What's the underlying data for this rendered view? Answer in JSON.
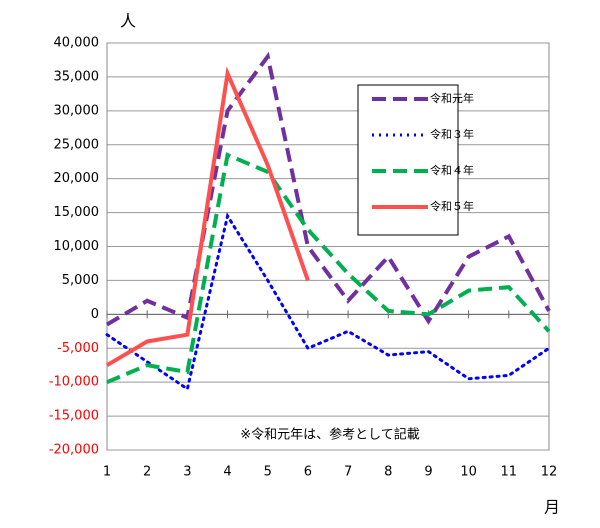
{
  "chart_data": {
    "type": "line",
    "y_unit": "人",
    "x_unit": "月",
    "annotation": "※令和元年は、参考として記載",
    "categories": [
      "1",
      "2",
      "3",
      "4",
      "5",
      "6",
      "7",
      "8",
      "9",
      "10",
      "11",
      "12"
    ],
    "series": [
      {
        "name": "令和元年",
        "color": "#7030a0",
        "dash": "dashed",
        "values": [
          -1500,
          2000,
          -500,
          30000,
          38000,
          10000,
          2000,
          8500,
          -1000,
          8500,
          11500,
          500
        ]
      },
      {
        "name": "令和３年",
        "color": "#0000ff",
        "dash": "dotted",
        "values": [
          -3000,
          -7000,
          -11000,
          14500,
          5000,
          -5000,
          -2500,
          -6000,
          -5500,
          -9500,
          -9000,
          -5000
        ]
      },
      {
        "name": "令和４年",
        "color": "#00b050",
        "dash": "dashed",
        "values": [
          -10000,
          -7500,
          -8500,
          23500,
          21000,
          12500,
          6000,
          500,
          0,
          3500,
          4000,
          -2500
        ]
      },
      {
        "name": "令和５年",
        "color": "#ff5050",
        "dash": "solid",
        "values": [
          -7500,
          -4000,
          -3000,
          35500,
          22000,
          5000,
          null,
          null,
          null,
          null,
          null,
          null
        ]
      }
    ],
    "ylim": [
      -20000,
      40000
    ],
    "yticks": [
      {
        "value": -20000,
        "label": "-20,000"
      },
      {
        "value": -15000,
        "label": "-15,000"
      },
      {
        "value": -10000,
        "label": "-10,000"
      },
      {
        "value": -5000,
        "label": "-5,000"
      },
      0,
      {
        "value": 5000,
        "label": "5,000"
      },
      {
        "value": 10000,
        "label": "10,000"
      },
      {
        "value": 15000,
        "label": "15,000"
      },
      {
        "value": 20000,
        "label": "20,000"
      },
      {
        "value": 25000,
        "label": "25,000"
      },
      {
        "value": 30000,
        "label": "30,000"
      },
      {
        "value": 35000,
        "label": "35,000"
      },
      {
        "value": 40000,
        "label": "40,000"
      }
    ],
    "grid": true,
    "negative_tick_color": "#ff0000",
    "legend": "upper right"
  }
}
